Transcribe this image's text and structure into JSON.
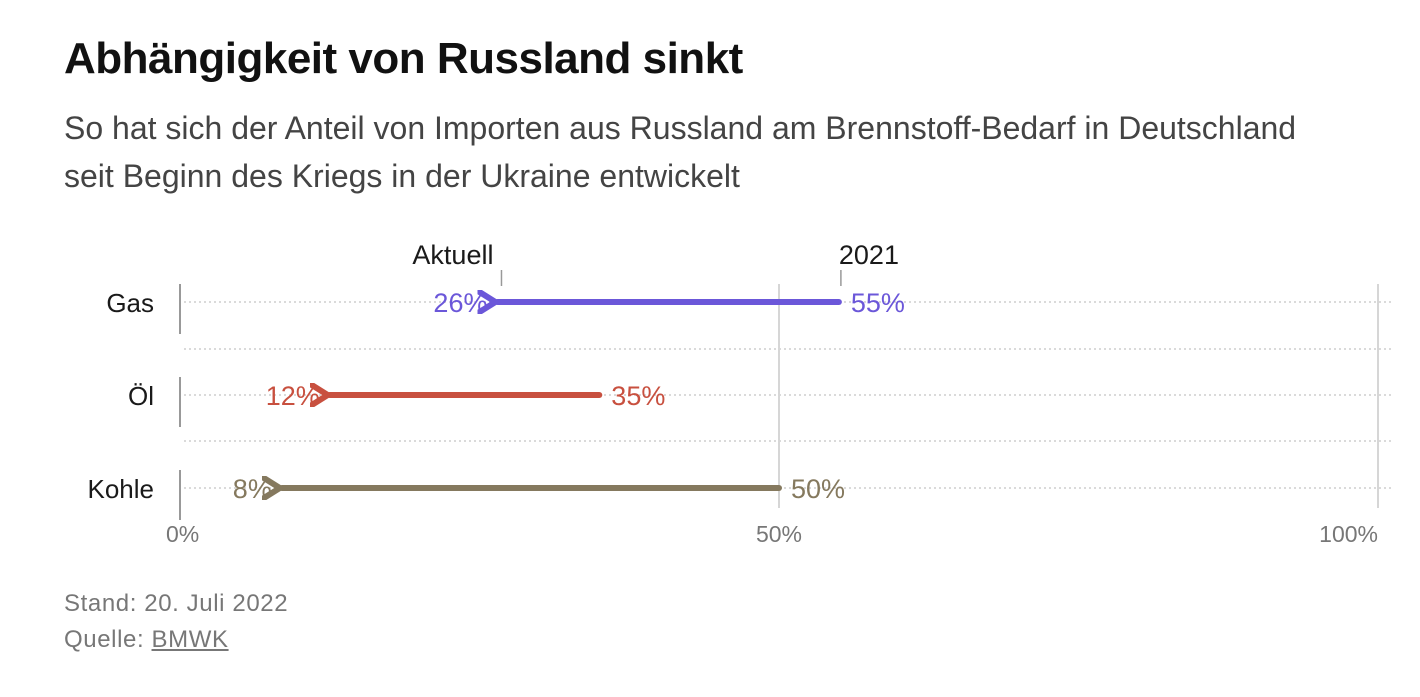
{
  "header": {
    "title": "Abhängigkeit von Russland sinkt",
    "subtitle": "So hat sich der Anteil von Importen aus Russland am Brennstoff-Bedarf in Deutschland seit Beginn des Kriegs in der Ukraine entwickelt"
  },
  "chart_data": {
    "type": "arrow-dumbbell",
    "legend": {
      "current": "Aktuell",
      "past": "2021"
    },
    "categories": [
      "Gas",
      "Öl",
      "Kohle"
    ],
    "series": [
      {
        "name": "2021",
        "values": [
          55,
          35,
          50
        ],
        "labels": [
          "55%",
          "35%",
          "50%"
        ]
      },
      {
        "name": "Aktuell",
        "values": [
          26,
          12,
          8
        ],
        "labels": [
          "26%",
          "12%",
          "8%"
        ]
      }
    ],
    "colors": [
      "#6b57d9",
      "#c8503f",
      "#85795e"
    ],
    "x_ticks": [
      0,
      50,
      100
    ],
    "x_tick_labels": [
      "0%",
      "50%",
      "100%"
    ],
    "xlim": [
      0,
      100
    ]
  },
  "footer": {
    "stand": "Stand: 20. Juli 2022",
    "quelle_prefix": "Quelle: ",
    "quelle_link": "BMWK"
  }
}
